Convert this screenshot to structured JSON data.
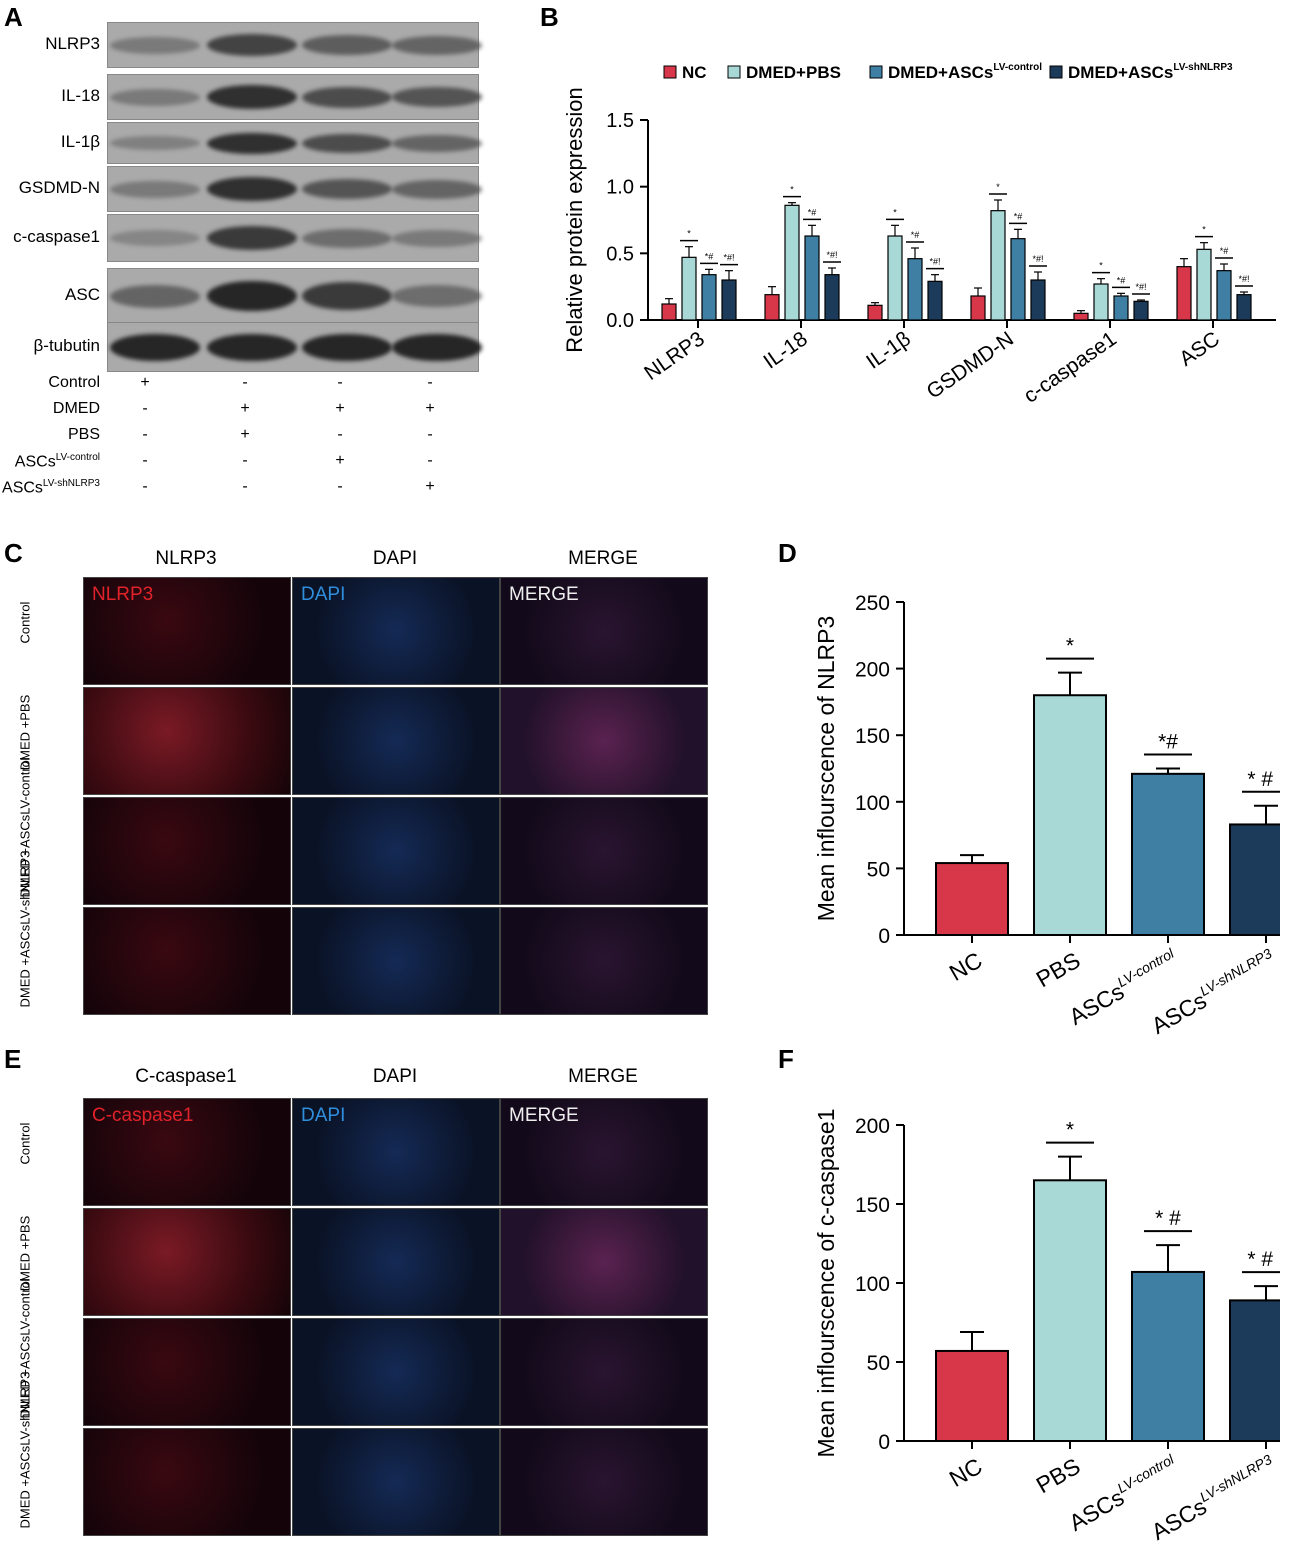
{
  "panels": {
    "A": "A",
    "B": "B",
    "C": "C",
    "D": "D",
    "E": "E",
    "F": "F"
  },
  "blot": {
    "rows": [
      {
        "label": "NLRP3",
        "bands": [
          0.45,
          0.8,
          0.65,
          0.6
        ]
      },
      {
        "label": "IL-18",
        "bands": [
          0.45,
          0.9,
          0.75,
          0.7
        ]
      },
      {
        "label": "IL-1β",
        "bands": [
          0.4,
          0.9,
          0.75,
          0.6
        ]
      },
      {
        "label": "GSDMD-N",
        "bands": [
          0.45,
          0.9,
          0.7,
          0.6
        ]
      },
      {
        "label": "c-caspase1",
        "bands": [
          0.35,
          0.85,
          0.55,
          0.45
        ]
      },
      {
        "label": "ASC",
        "bands": [
          0.6,
          0.95,
          0.85,
          0.55
        ]
      },
      {
        "label": "β-tubutin",
        "bands": [
          0.95,
          0.95,
          0.95,
          0.95
        ]
      }
    ],
    "conditions": [
      {
        "label": "Control",
        "sup": "",
        "marks": [
          "+",
          "-",
          "-",
          "-"
        ]
      },
      {
        "label": "DMED",
        "sup": "",
        "marks": [
          "-",
          "+",
          "+",
          "+"
        ]
      },
      {
        "label": "PBS",
        "sup": "",
        "marks": [
          "-",
          "+",
          "-",
          "-"
        ]
      },
      {
        "label": "ASCs",
        "sup": "LV-control",
        "marks": [
          "-",
          "-",
          "+",
          "-"
        ]
      },
      {
        "label": "ASCs",
        "sup": "LV-shNLRP3",
        "marks": [
          "-",
          "-",
          "-",
          "+"
        ]
      }
    ]
  },
  "micro_C": {
    "columns": [
      "NLRP3",
      "DAPI",
      "MERGE"
    ],
    "overlays": [
      "NLRP3",
      "DAPI",
      "MERGE"
    ],
    "rows": [
      "Control",
      "DMED +PBS",
      "DMED +ASCsLV-control",
      "DMED +ASCsLV-shNLRP3"
    ]
  },
  "micro_E": {
    "columns": [
      "C-caspase1",
      "DAPI",
      "MERGE"
    ],
    "overlays": [
      "C-caspase1",
      "DAPI",
      "MERGE"
    ],
    "rows": [
      "Control",
      "DMED +PBS",
      "DMED +ASCsLV-control",
      "DMED +ASCsLV-shNLRP3"
    ]
  },
  "colors": {
    "nc": "#d8374a",
    "pbs": "#a9d9d6",
    "ctrl": "#3f7fa4",
    "sh": "#1c3b5b",
    "red_label": "#e0232b",
    "blue_label": "#2f8fdd",
    "white_label": "#eeeeee"
  },
  "chart_data": [
    {
      "panel": "B",
      "type": "bar",
      "categories": [
        "NLRP3",
        "IL-18",
        "IL-1β",
        "GSDMD-N",
        "c-caspase1",
        "ASC"
      ],
      "ylabel": "Relative protein expression",
      "ylim": [
        0,
        1.5
      ],
      "yticks": [
        "0.0",
        "0.5",
        "1.0",
        "1.5"
      ],
      "legend_position": "top",
      "series": [
        {
          "name": "NC",
          "sup": "",
          "values": [
            0.12,
            0.19,
            0.11,
            0.18,
            0.05,
            0.4
          ],
          "err": [
            0.04,
            0.06,
            0.02,
            0.06,
            0.02,
            0.06
          ]
        },
        {
          "name": "DMED+PBS",
          "sup": "",
          "values": [
            0.47,
            0.86,
            0.63,
            0.82,
            0.27,
            0.53
          ],
          "err": [
            0.08,
            0.02,
            0.08,
            0.08,
            0.04,
            0.05
          ]
        },
        {
          "name": "DMED+ASCs",
          "sup": "LV-control",
          "values": [
            0.34,
            0.63,
            0.46,
            0.61,
            0.18,
            0.37
          ],
          "err": [
            0.04,
            0.08,
            0.08,
            0.07,
            0.02,
            0.05
          ]
        },
        {
          "name": "DMED+ASCs",
          "sup": "LV-shNLRP3",
          "values": [
            0.3,
            0.34,
            0.29,
            0.3,
            0.14,
            0.19
          ],
          "err": [
            0.07,
            0.05,
            0.05,
            0.06,
            0.01,
            0.02
          ]
        }
      ],
      "annotations": [
        "*",
        "*#",
        "*#!"
      ]
    },
    {
      "panel": "D",
      "type": "bar",
      "categories": [
        "NC",
        "PBS",
        "ASCs",
        "ASCs"
      ],
      "category_sup": [
        "",
        "",
        "LV-control",
        "LV-shNLRP3"
      ],
      "ylabel": "Mean inflourscence of NLRP3",
      "ylim": [
        0,
        250
      ],
      "yticks": [
        "0",
        "50",
        "100",
        "150",
        "200",
        "250"
      ],
      "values": [
        54,
        180,
        121,
        83
      ],
      "err": [
        6,
        17,
        4,
        14
      ],
      "annotations": [
        "",
        "*",
        "*#",
        "* # !"
      ]
    },
    {
      "panel": "F",
      "type": "bar",
      "categories": [
        "NC",
        "PBS",
        "ASCs",
        "ASCs"
      ],
      "category_sup": [
        "",
        "",
        "LV-control",
        "LV-shNLRP3"
      ],
      "ylabel": "Mean inflourscence of c-caspase1",
      "ylim": [
        0,
        200
      ],
      "yticks": [
        "0",
        "50",
        "100",
        "150",
        "200"
      ],
      "values": [
        57,
        165,
        107,
        89
      ],
      "err": [
        12,
        15,
        17,
        9
      ],
      "annotations": [
        "",
        "*",
        "* #",
        "* # !"
      ]
    }
  ]
}
